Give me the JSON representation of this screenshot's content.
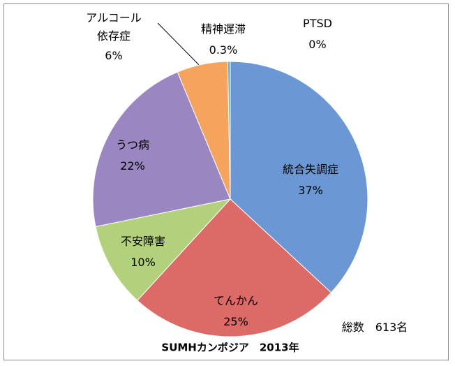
{
  "chart_data": {
    "type": "pie",
    "title": "SUMHカンボジア　2013年",
    "annotation": "総数　613名",
    "categories": [
      "統合失調症",
      "てんかん",
      "不安障害",
      "うつ病",
      "アルコール依存症",
      "精神遅滞",
      "PTSD"
    ],
    "values": [
      37,
      25,
      10,
      22,
      6,
      0.3,
      0
    ],
    "value_labels": [
      "37%",
      "25%",
      "10%",
      "22%",
      "6%",
      "0.3%",
      "0%"
    ],
    "colors": [
      "#6b98d4",
      "#dc6a66",
      "#b3d17c",
      "#9a86c0",
      "#f6a35e",
      "#5ab4cc",
      "#9cc3e6"
    ]
  }
}
